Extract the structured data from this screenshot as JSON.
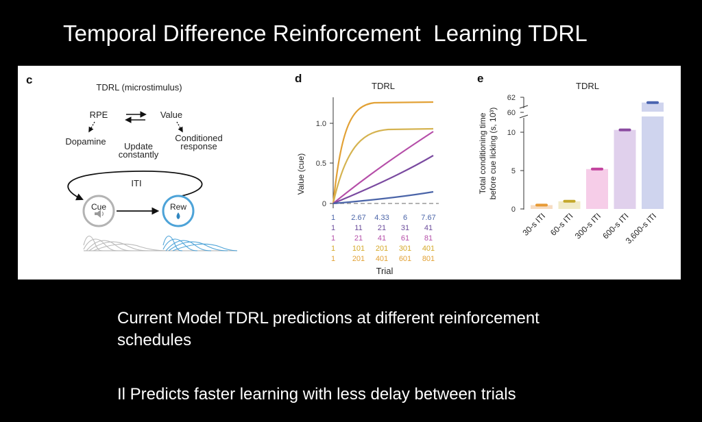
{
  "slide": {
    "title": "Temporal Difference Reinforcement  Learning TDRL",
    "caption_line1": "Current Model TDRL predictions at different reinforcement schedules",
    "caption_line2": "Il Predicts faster learning with less delay between trials"
  },
  "panel_c": {
    "letter": "c",
    "title": "TDRL (microstimulus)",
    "rpe": "RPE",
    "value": "Value",
    "dopamine": "Dopamine",
    "update_line1": "Update",
    "update_line2": "constantly",
    "conditioned_line1": "Conditioned",
    "conditioned_line2": "response",
    "iti": "ITI",
    "cue": "Cue",
    "rew": "Rew"
  },
  "panel_d": {
    "letter": "d",
    "title": "TDRL",
    "ylabel": "Value (cue)",
    "xlabel": "Trial",
    "yticks": [
      "1.0",
      "0.5",
      "0"
    ],
    "trial_rows": [
      {
        "color": "#4a64a8",
        "values": [
          "1",
          "2.67",
          "4.33",
          "6",
          "7.67"
        ]
      },
      {
        "color": "#6a4a9a",
        "values": [
          "1",
          "11",
          "21",
          "31",
          "41"
        ]
      },
      {
        "color": "#b54ea8",
        "values": [
          "1",
          "21",
          "41",
          "61",
          "81"
        ]
      },
      {
        "color": "#d5a928",
        "values": [
          "1",
          "101",
          "201",
          "301",
          "401"
        ]
      },
      {
        "color": "#e2a135",
        "values": [
          "1",
          "201",
          "401",
          "601",
          "801"
        ]
      }
    ]
  },
  "panel_e": {
    "letter": "e",
    "title": "TDRL",
    "ylabel_line1": "Total conditioning time",
    "ylabel_line2": "before cue licking (s, 10³)",
    "yticks_lower": [
      "0",
      "5",
      "10"
    ],
    "yticks_upper": [
      "60",
      "62"
    ],
    "categories": [
      "30-s ITI",
      "60-s ITI",
      "300-s ITI",
      "600-s ITI",
      "3,600-s ITI"
    ],
    "values": [
      0.5,
      1.0,
      5.2,
      10.3,
      61.3
    ],
    "bar_colors": [
      "#f6dcc2",
      "#f1ebc8",
      "#f6cde8",
      "#e0d0ec",
      "#cfd4ee"
    ],
    "mark_colors": [
      "#e89a35",
      "#c4a82a",
      "#c2429e",
      "#8a4aa0",
      "#4a64b0"
    ]
  }
}
